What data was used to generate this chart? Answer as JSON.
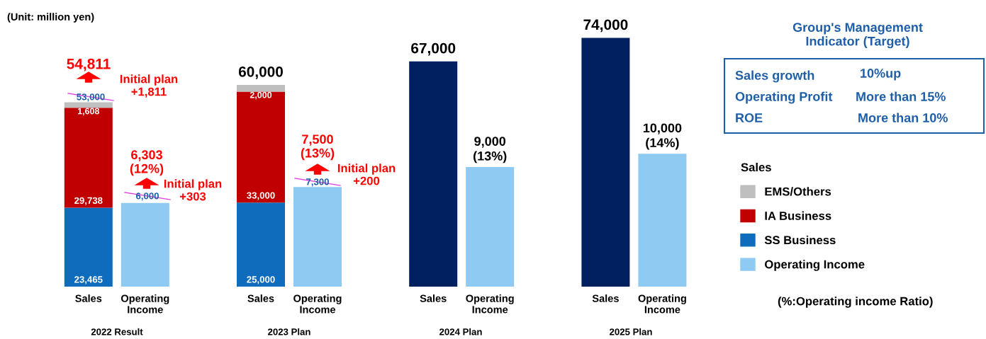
{
  "chart_data": {
    "type": "bar",
    "stacked": true,
    "categories": [
      "Sales",
      "Operating\nIncome",
      "Sales",
      "Operating\nIncome",
      "Sales",
      "Operating\nIncome",
      "Sales",
      "Operating\nIncome"
    ],
    "series": [
      {
        "name": "SS Business",
        "color": "#0f6cbd",
        "values": [
          23465,
          null,
          25000,
          null,
          null,
          null,
          null,
          null
        ],
        "value_labels": [
          "23,465",
          null,
          "25,000",
          null,
          null,
          null,
          null,
          null
        ]
      },
      {
        "name": "IA Business",
        "color": "#c00000",
        "values": [
          29738,
          null,
          33000,
          null,
          null,
          null,
          null,
          null
        ],
        "value_labels": [
          "29,738",
          null,
          "33,000",
          null,
          null,
          null,
          null,
          null
        ]
      },
      {
        "name": "EMS/Others",
        "color": "#bfbfbf",
        "values": [
          1608,
          null,
          2000,
          null,
          null,
          null,
          null,
          null
        ],
        "value_labels": [
          "1,608",
          null,
          "2,000",
          null,
          null,
          null,
          null,
          null
        ]
      },
      {
        "color": "#002060",
        "values": [
          null,
          null,
          null,
          null,
          67000,
          null,
          74000,
          null
        ]
      },
      {
        "name": "Operating Income",
        "color": "#8ecaf2",
        "axis": "y2",
        "values": [
          null,
          6303,
          null,
          7500,
          null,
          9000,
          null,
          10000
        ],
        "value_labels": [
          null,
          null,
          null,
          null,
          null,
          "9,000\n(13%)",
          null,
          "10,000\n(14%)"
        ]
      }
    ],
    "totals": [
      null,
      null,
      "60,000",
      null,
      "67,000",
      null,
      "74,000",
      null
    ],
    "tick_labels": "x",
    "legend": "right",
    "legend_title": "Sales",
    "grid": false,
    "annotations": [
      "(Unit: million yen)",
      "54,811",
      "Initial plan\n+1,811",
      "53,000",
      "6,303\n(12%)",
      "Initial plan\n+303",
      "6,000",
      "7,500\n(13%)",
      "Initial plan\n+200",
      "7,300",
      "2022 Result",
      "2023 Plan",
      "2024 Plan",
      "2025 Plan",
      "Group's Management\nIndicator (Target)",
      "Sales growth",
      "10%up",
      "Operating Profit",
      "More than 15%",
      "ROE",
      "More than 10%",
      "(%:Operating income Ratio)"
    ]
  }
}
